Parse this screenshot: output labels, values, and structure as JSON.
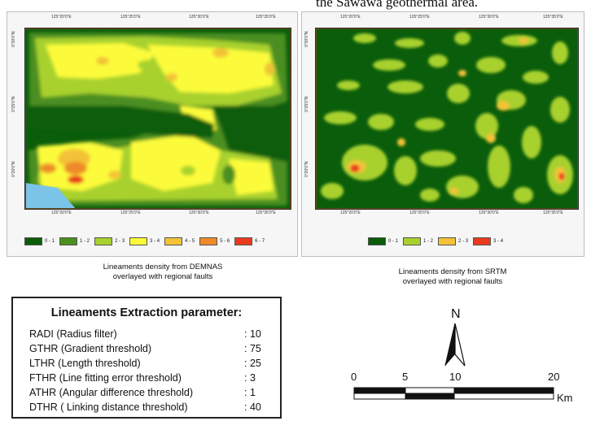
{
  "top_caption": "the Sawawa geothermal area.",
  "left_map": {
    "top_ticks": [
      "125°20'0\"E",
      "125°25'0\"E",
      "125°30'0\"E",
      "125°35'0\"E"
    ],
    "bottom_ticks": [
      "125°20'0\"E",
      "125°25'0\"E",
      "125°30'0\"E",
      "125°35'0\"E"
    ],
    "left_ticks": [
      "0°30'0\"N",
      "0°25'0\"N",
      "0°20'0\"N"
    ],
    "legend": [
      {
        "label": "0 - 1",
        "color": "#0a5d0a"
      },
      {
        "label": "1 - 2",
        "color": "#4b8f21"
      },
      {
        "label": "2 - 3",
        "color": "#a8d12e"
      },
      {
        "label": "3 - 4",
        "color": "#fbfb3a"
      },
      {
        "label": "4 - 5",
        "color": "#f3c238"
      },
      {
        "label": "5 - 6",
        "color": "#ef8a2a"
      },
      {
        "label": "6 - 7",
        "color": "#ea3a1e"
      }
    ],
    "caption_line1": "Lineaments density from DEMNAS",
    "caption_line2": "overlayed with regional faults"
  },
  "right_map": {
    "top_ticks": [
      "125°20'0\"E",
      "125°25'0\"E",
      "125°30'0\"E",
      "125°35'0\"E"
    ],
    "bottom_ticks": [
      "125°20'0\"E",
      "125°25'0\"E",
      "125°30'0\"E",
      "125°35'0\"E"
    ],
    "left_ticks": [
      "0°30'0\"N",
      "0°25'0\"N",
      "0°20'0\"N"
    ],
    "legend": [
      {
        "label": "0 - 1",
        "color": "#0a5d0a"
      },
      {
        "label": "1 - 2",
        "color": "#a8d12e"
      },
      {
        "label": "2 - 3",
        "color": "#f3c238"
      },
      {
        "label": "3 - 4",
        "color": "#ea3a1e"
      }
    ],
    "caption_line1": "Lineaments density from SRTM",
    "caption_line2": "overlayed with regional faults"
  },
  "params": {
    "title": "Lineaments Extraction parameter:",
    "rows": [
      {
        "name": "RADI (Radius filter)",
        "value": ": 10"
      },
      {
        "name": "GTHR (Gradient threshold)",
        "value": ": 75"
      },
      {
        "name": "LTHR (Length threshold)",
        "value": ": 25"
      },
      {
        "name": "FTHR (Line fitting error threshold)",
        "value": ": 3"
      },
      {
        "name": "ATHR (Angular difference threshold)",
        "value": ": 1"
      },
      {
        "name": "DTHR ( Linking distance threshold)",
        "value": ": 40"
      }
    ]
  },
  "north_arrow": {
    "letter": "N"
  },
  "scale_bar": {
    "labels": [
      "0",
      "5",
      "10",
      "20"
    ],
    "unit": "Km"
  },
  "colors": {
    "sea": "#7cc3e8",
    "class_0_1": "#0a5d0a",
    "class_1_2": "#4b8f21",
    "class_2_3": "#a8d12e",
    "class_3_4": "#fbfb3a",
    "class_4_5": "#f3c238",
    "class_5_6": "#ef8a2a",
    "class_6_7": "#ea3a1e"
  }
}
